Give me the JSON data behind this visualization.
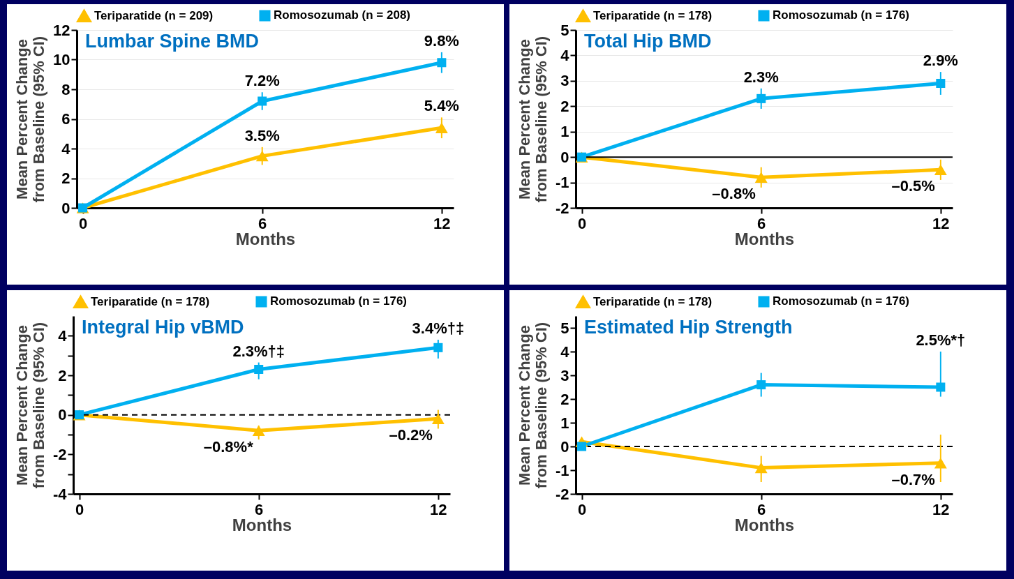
{
  "chart_data": [
    {
      "type": "line",
      "title": "Lumbar Spine BMD",
      "xlabel": "Months",
      "ylabel": "Mean Percent Change\nfrom Baseline (95% CI)",
      "x": [
        0,
        6,
        12
      ],
      "xlim": [
        -0.2,
        12.4
      ],
      "xticks": [
        0,
        6,
        12
      ],
      "ylim": [
        0,
        12
      ],
      "yticks": [
        0,
        2,
        4,
        6,
        8,
        10,
        12
      ],
      "grid": "y",
      "legend": "top",
      "series": [
        {
          "name": "Teriparatide (n = 209)",
          "color": "#ffc000",
          "marker": "triangle",
          "values": [
            0,
            3.5,
            5.4
          ],
          "errors": [
            null,
            0.6,
            0.7
          ],
          "value_labels": [
            null,
            "3.5%",
            "5.4%"
          ]
        },
        {
          "name": "Romosozumab (n = 208)",
          "color": "#00b0f0",
          "marker": "square",
          "values": [
            0,
            7.2,
            9.8
          ],
          "errors": [
            null,
            0.6,
            0.7
          ],
          "value_labels": [
            null,
            "7.2%",
            "9.8%"
          ]
        }
      ]
    },
    {
      "type": "line",
      "title": "Total Hip BMD",
      "xlabel": "Months",
      "ylabel": "Mean Percent Change\nfrom Baseline (95% CI)",
      "x": [
        0,
        6,
        12
      ],
      "xlim": [
        -0.2,
        12.4
      ],
      "xticks": [
        0,
        6,
        12
      ],
      "ylim": [
        -2,
        5
      ],
      "yticks": [
        -2,
        -1,
        0,
        1,
        2,
        3,
        4,
        5
      ],
      "grid": "y",
      "legend": "top",
      "ref_lines": [
        {
          "axis": "y",
          "value": 0,
          "color": "#000000",
          "line_style": "solid"
        }
      ],
      "series": [
        {
          "name": "Teriparatide (n = 178)",
          "color": "#ffc000",
          "marker": "triangle",
          "values": [
            0,
            -0.8,
            -0.5
          ],
          "errors": [
            null,
            0.4,
            0.4
          ],
          "value_labels": [
            null,
            "–0.8%",
            "–0.5%"
          ]
        },
        {
          "name": "Romosozumab (n = 176)",
          "color": "#00b0f0",
          "marker": "square",
          "values": [
            0,
            2.3,
            2.9
          ],
          "errors": [
            null,
            0.4,
            0.45
          ],
          "value_labels": [
            null,
            "2.3%",
            "2.9%"
          ]
        }
      ]
    },
    {
      "type": "line",
      "title": "Integral Hip vBMD",
      "xlabel": "Months",
      "ylabel": "Mean Percent Change\nfrom Baseline (95% CI)",
      "x": [
        0,
        6,
        12
      ],
      "xlim": [
        -0.2,
        12.4
      ],
      "xticks": [
        0,
        6,
        12
      ],
      "ylim": [
        -4,
        5
      ],
      "yticks": [
        -4,
        {
          "value": -3,
          "label": null
        },
        -2,
        {
          "value": -1,
          "label": null
        },
        0,
        {
          "value": 1,
          "label": null
        },
        2,
        {
          "value": 3,
          "label": null
        },
        4
      ],
      "grid": false,
      "legend": "top",
      "ref_lines": [
        {
          "axis": "y",
          "value": 0,
          "color": "#000000",
          "line_style": "dashed"
        }
      ],
      "series": [
        {
          "name": "Teriparatide (n = 178)",
          "color": "#ffc000",
          "marker": "triangle",
          "values": [
            0,
            -0.8,
            -0.2
          ],
          "errors": [
            null,
            [
              -1.25,
              -0.55
            ],
            [
              -0.7,
              0.25
            ]
          ],
          "value_labels": [
            null,
            "–0.8%*",
            "–0.2%"
          ]
        },
        {
          "name": "Romosozumab (n = 176)",
          "color": "#00b0f0",
          "marker": "square",
          "values": [
            0,
            2.3,
            3.4
          ],
          "errors": [
            null,
            [
              1.8,
              2.65
            ],
            [
              2.85,
              3.8
            ]
          ],
          "value_labels": [
            null,
            "2.3%†‡",
            "3.4%†‡"
          ]
        }
      ]
    },
    {
      "type": "line",
      "title": "Estimated Hip Strength",
      "xlabel": "Months",
      "ylabel": "Mean Percent Change\nfrom Baseline (95% CI)",
      "x": [
        0,
        6,
        12
      ],
      "xlim": [
        -0.2,
        12.4
      ],
      "xticks": [
        0,
        6,
        12
      ],
      "ylim": [
        -2,
        5.5
      ],
      "yticks": [
        -2,
        -1,
        0,
        1,
        2,
        3,
        4,
        5
      ],
      "grid": false,
      "legend": "top",
      "ref_lines": [
        {
          "axis": "y",
          "value": 0,
          "color": "#000000",
          "line_style": "dashed"
        }
      ],
      "series": [
        {
          "name": "Teriparatide (n = 178)",
          "color": "#ffc000",
          "marker": "triangle",
          "values": [
            0.2,
            -0.9,
            -0.7
          ],
          "errors": [
            null,
            [
              -1.5,
              -0.4
            ],
            [
              -1.5,
              0.5
            ]
          ],
          "value_labels": [
            null,
            null,
            "–0.7%"
          ]
        },
        {
          "name": "Romosozumab (n = 176)",
          "color": "#00b0f0",
          "marker": "square",
          "values": [
            0,
            2.6,
            2.5
          ],
          "errors": [
            null,
            [
              2.1,
              3.1
            ],
            [
              2.1,
              4.0
            ]
          ],
          "value_labels": [
            null,
            null,
            "2.5%*†"
          ]
        }
      ]
    }
  ]
}
